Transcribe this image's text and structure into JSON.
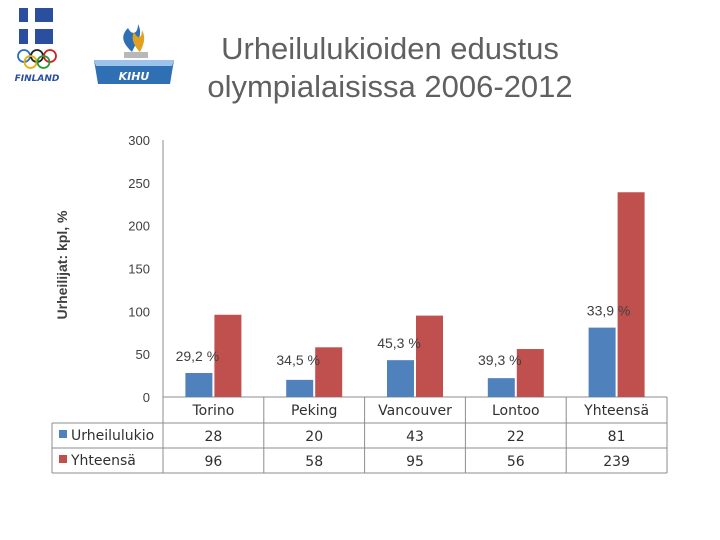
{
  "title": "Urheilulukioiden edustus\nolympialaisissa 2006-2012",
  "logos": {
    "left_text": "FINLAND",
    "right_text": "KIHU"
  },
  "chart_data": {
    "type": "bar",
    "title": "Urheilulukioiden edustus olympialaisissa 2006-2012",
    "ylabel": "Urheilijat: kpl, %",
    "xlabel": "",
    "categories": [
      "Torino",
      "Peking",
      "Vancouver",
      "Lontoo",
      "Yhteensä"
    ],
    "series": [
      {
        "name": "Urheilulukio",
        "values": [
          28,
          20,
          43,
          22,
          81
        ],
        "color": "#4F81BD"
      },
      {
        "name": "Yhteensä",
        "values": [
          96,
          58,
          95,
          56,
          239
        ],
        "color": "#C0504D"
      }
    ],
    "percent_labels": [
      "29,2 %",
      "34,5 %",
      "45,3 %",
      "39,3 %",
      "33,9 %"
    ],
    "yticks": [
      "300",
      "250",
      "200",
      "150",
      "100",
      "50",
      "0"
    ],
    "ylim": [
      0,
      300
    ],
    "grid": false,
    "legend": "data-table"
  }
}
